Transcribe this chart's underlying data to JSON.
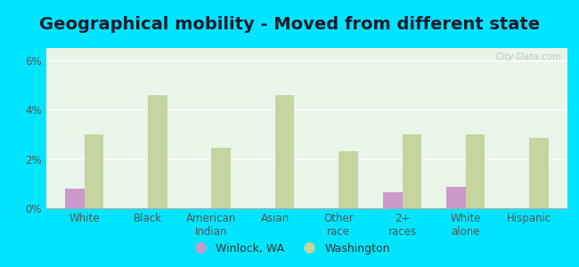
{
  "title": "Geographical mobility - Moved from different state",
  "categories": [
    "White",
    "Black",
    "American\nIndian",
    "Asian",
    "Other\nrace",
    "2+\nraces",
    "White\nalone",
    "Hispanic"
  ],
  "winlock_values": [
    0.8,
    0.0,
    0.0,
    0.0,
    0.0,
    0.65,
    0.85,
    0.0
  ],
  "washington_values": [
    3.0,
    4.6,
    2.45,
    4.6,
    2.3,
    3.0,
    3.0,
    2.85
  ],
  "winlock_color": "#cc99cc",
  "washington_color": "#c8d4a0",
  "background_top": "#e8f5e8",
  "background_bottom": "#d0eee8",
  "outer_background": "#00e5ff",
  "ylim": [
    0,
    6.5
  ],
  "yticks": [
    0,
    2,
    4,
    6
  ],
  "ytick_labels": [
    "0%",
    "2%",
    "4%",
    "6%"
  ],
  "legend_winlock": "Winlock, WA",
  "legend_washington": "Washington",
  "bar_width": 0.3,
  "title_fontsize": 14,
  "tick_fontsize": 8.5,
  "legend_fontsize": 9
}
